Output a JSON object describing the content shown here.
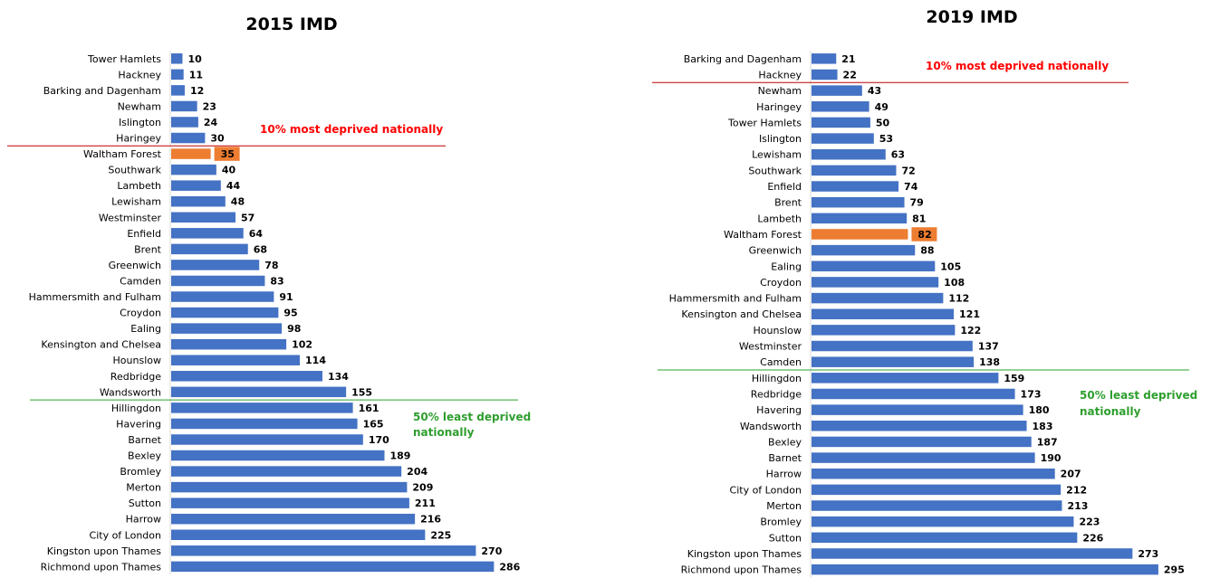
{
  "colors": {
    "bar": "#4472C4",
    "highlight": "#ED7D31",
    "most_deprived_line": "#C00000",
    "most_deprived_text": "#FF0000",
    "least_deprived_line": "#2BA02B",
    "least_deprived_text": "#2E9E2E"
  },
  "chart_data": [
    {
      "type": "bar",
      "orientation": "horizontal",
      "title": "2015 IMD",
      "highlight": "Waltham Forest",
      "categories": [
        "Tower Hamlets",
        "Hackney",
        "Barking and Dagenham",
        "Newham",
        "Islington",
        "Haringey",
        "Waltham Forest",
        "Southwark",
        "Lambeth",
        "Lewisham",
        "Westminster",
        "Enfield",
        "Brent",
        "Greenwich",
        "Camden",
        "Hammersmith and Fulham",
        "Croydon",
        "Ealing",
        "Kensington and Chelsea",
        "Hounslow",
        "Redbridge",
        "Wandsworth",
        "Hillingdon",
        "Havering",
        "Barnet",
        "Bexley",
        "Bromley",
        "Merton",
        "Sutton",
        "Harrow",
        "City of London",
        "Kingston upon Thames",
        "Richmond upon Thames"
      ],
      "values": [
        10,
        11,
        12,
        23,
        24,
        30,
        35,
        40,
        44,
        48,
        57,
        64,
        68,
        78,
        83,
        91,
        95,
        98,
        102,
        114,
        134,
        155,
        161,
        165,
        170,
        189,
        204,
        209,
        211,
        216,
        225,
        270,
        286
      ],
      "annotations": [
        {
          "text": "10% most deprived nationally",
          "after_category": "Haringey",
          "kind": "most"
        },
        {
          "text": "50% least deprived nationally",
          "after_category": "Wandsworth",
          "kind": "least"
        }
      ],
      "data_labels": true,
      "grid": false,
      "legend": "none"
    },
    {
      "type": "bar",
      "orientation": "horizontal",
      "title": "2019 IMD",
      "highlight": "Waltham Forest",
      "categories": [
        "Barking and Dagenham",
        "Hackney",
        "Newham",
        "Haringey",
        "Tower Hamlets",
        "Islington",
        "Lewisham",
        "Southwark",
        "Enfield",
        "Brent",
        "Lambeth",
        "Waltham Forest",
        "Greenwich",
        "Ealing",
        "Croydon",
        "Hammersmith and Fulham",
        "Kensington and Chelsea",
        "Hounslow",
        "Westminster",
        "Camden",
        "Hillingdon",
        "Redbridge",
        "Havering",
        "Wandsworth",
        "Bexley",
        "Barnet",
        "Harrow",
        "City of London",
        "Merton",
        "Bromley",
        "Sutton",
        "Kingston upon Thames",
        "Richmond upon Thames"
      ],
      "values": [
        21,
        22,
        43,
        49,
        50,
        53,
        63,
        72,
        74,
        79,
        81,
        82,
        88,
        105,
        108,
        112,
        121,
        122,
        137,
        138,
        159,
        173,
        180,
        183,
        187,
        190,
        207,
        212,
        213,
        223,
        226,
        273,
        295
      ],
      "annotations": [
        {
          "text": "10% most deprived nationally",
          "after_category": "Hackney",
          "kind": "most"
        },
        {
          "text": "50% least deprived nationally",
          "after_category": "Camden",
          "kind": "least"
        }
      ],
      "data_labels": true,
      "grid": false,
      "legend": "none"
    }
  ]
}
